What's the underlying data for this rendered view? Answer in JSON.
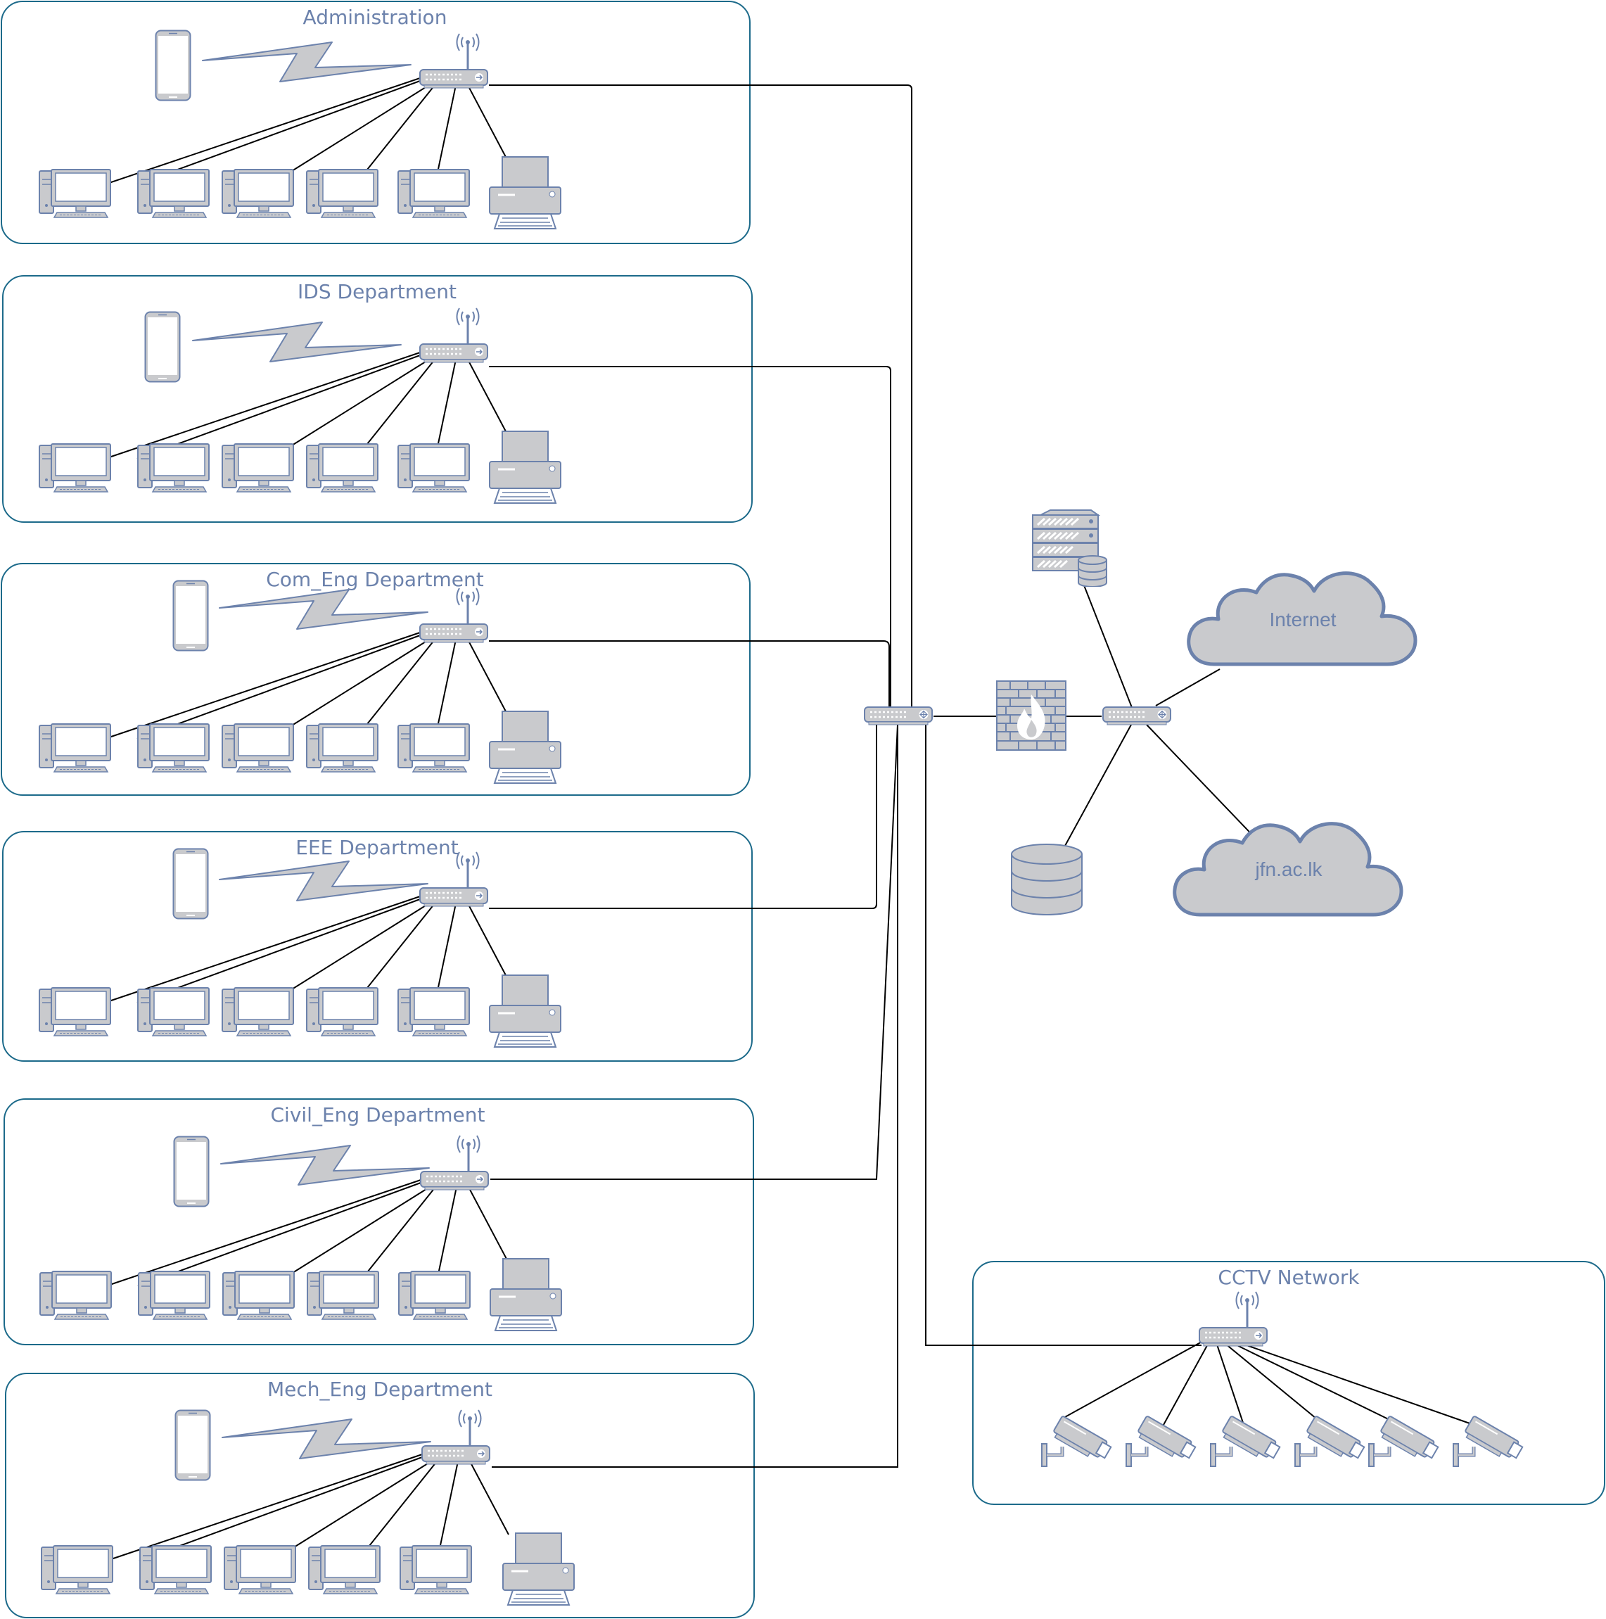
{
  "diagram": {
    "departments": [
      {
        "id": "administration",
        "title": "Administration"
      },
      {
        "id": "ids",
        "title": "IDS Department"
      },
      {
        "id": "com-eng",
        "title": "Com_Eng Department"
      },
      {
        "id": "eee",
        "title": "EEE Department"
      },
      {
        "id": "civil-eng",
        "title": "Civil_Eng Department"
      },
      {
        "id": "mech-eng",
        "title": "Mech_Eng Department"
      }
    ],
    "cctv": {
      "title": "CCTV Network",
      "camera_count": 6
    },
    "clouds": {
      "internet": "Internet",
      "domain": "jfn.ac.lk"
    },
    "devices_per_department": {
      "computers": 5,
      "printers": 1,
      "phones": 1,
      "wireless_routers": 1
    },
    "icons": {
      "computer": "desktop-computer-icon",
      "printer": "printer-icon",
      "phone": "mobile-phone-icon",
      "router": "wireless-router-icon",
      "switch": "network-switch-icon",
      "firewall": "firewall-icon",
      "server": "server-icon",
      "database": "database-icon",
      "camera": "cctv-camera-icon",
      "cloud": "cloud-icon"
    },
    "colors": {
      "group_border": "#1c6a8a",
      "title_text": "#6c82ac",
      "device_fill": "#c9cacd",
      "device_stroke": "#6c82ac",
      "link": "#000000"
    }
  }
}
